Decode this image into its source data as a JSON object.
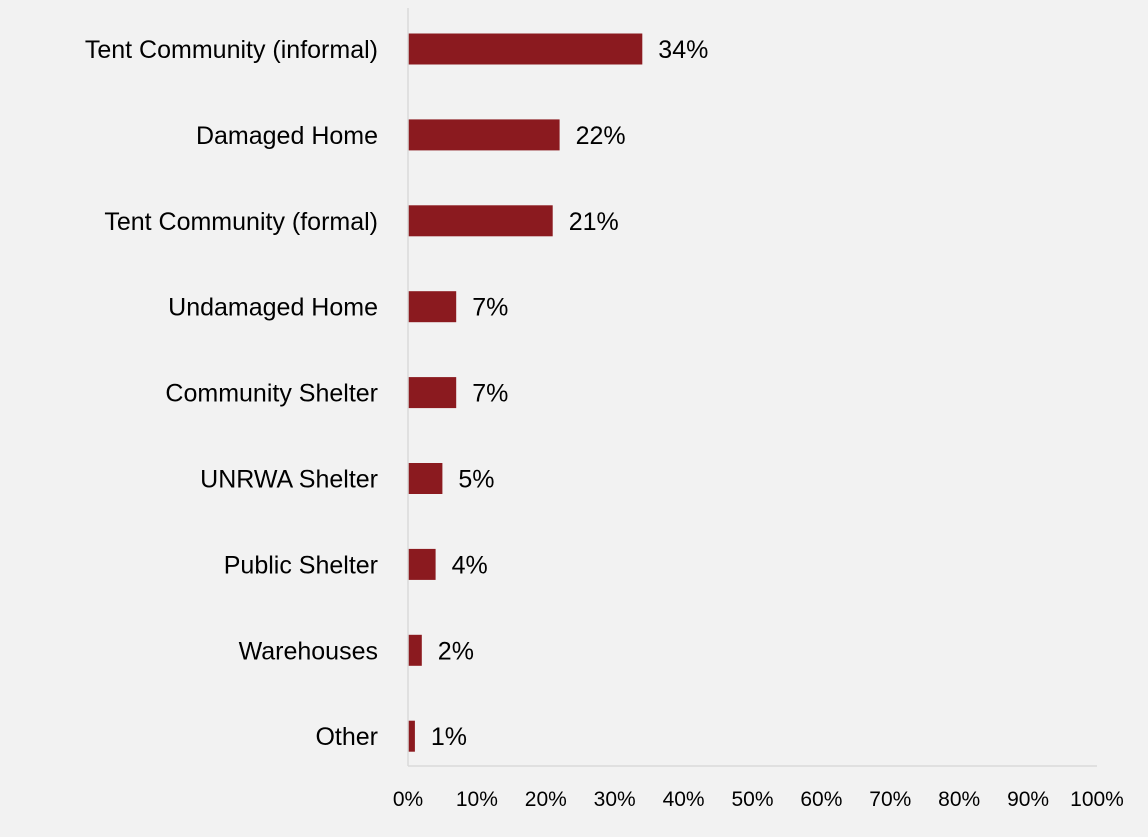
{
  "chart_data": {
    "type": "bar",
    "orientation": "horizontal",
    "categories": [
      "Tent Community (informal)",
      "Damaged Home",
      "Tent Community (formal)",
      "Undamaged Home",
      "Community Shelter",
      "UNRWA Shelter",
      "Public Shelter",
      "Warehouses",
      "Other"
    ],
    "values": [
      34,
      22,
      21,
      7,
      7,
      5,
      4,
      2,
      1
    ],
    "value_labels": [
      "34%",
      "22%",
      "21%",
      "7%",
      "7%",
      "5%",
      "4%",
      "2%",
      "1%"
    ],
    "xlim": [
      0,
      100
    ],
    "x_ticks": [
      0,
      10,
      20,
      30,
      40,
      50,
      60,
      70,
      80,
      90,
      100
    ],
    "x_tick_labels": [
      "0%",
      "10%",
      "20%",
      "30%",
      "40%",
      "50%",
      "60%",
      "70%",
      "80%",
      "90%",
      "100%"
    ],
    "title": "",
    "xlabel": "",
    "ylabel": "",
    "grid": false,
    "legend": "none",
    "bar_color": "#8b1a1f",
    "axis_color": "#d9d9d9",
    "background_color": "#f2f2f2"
  }
}
